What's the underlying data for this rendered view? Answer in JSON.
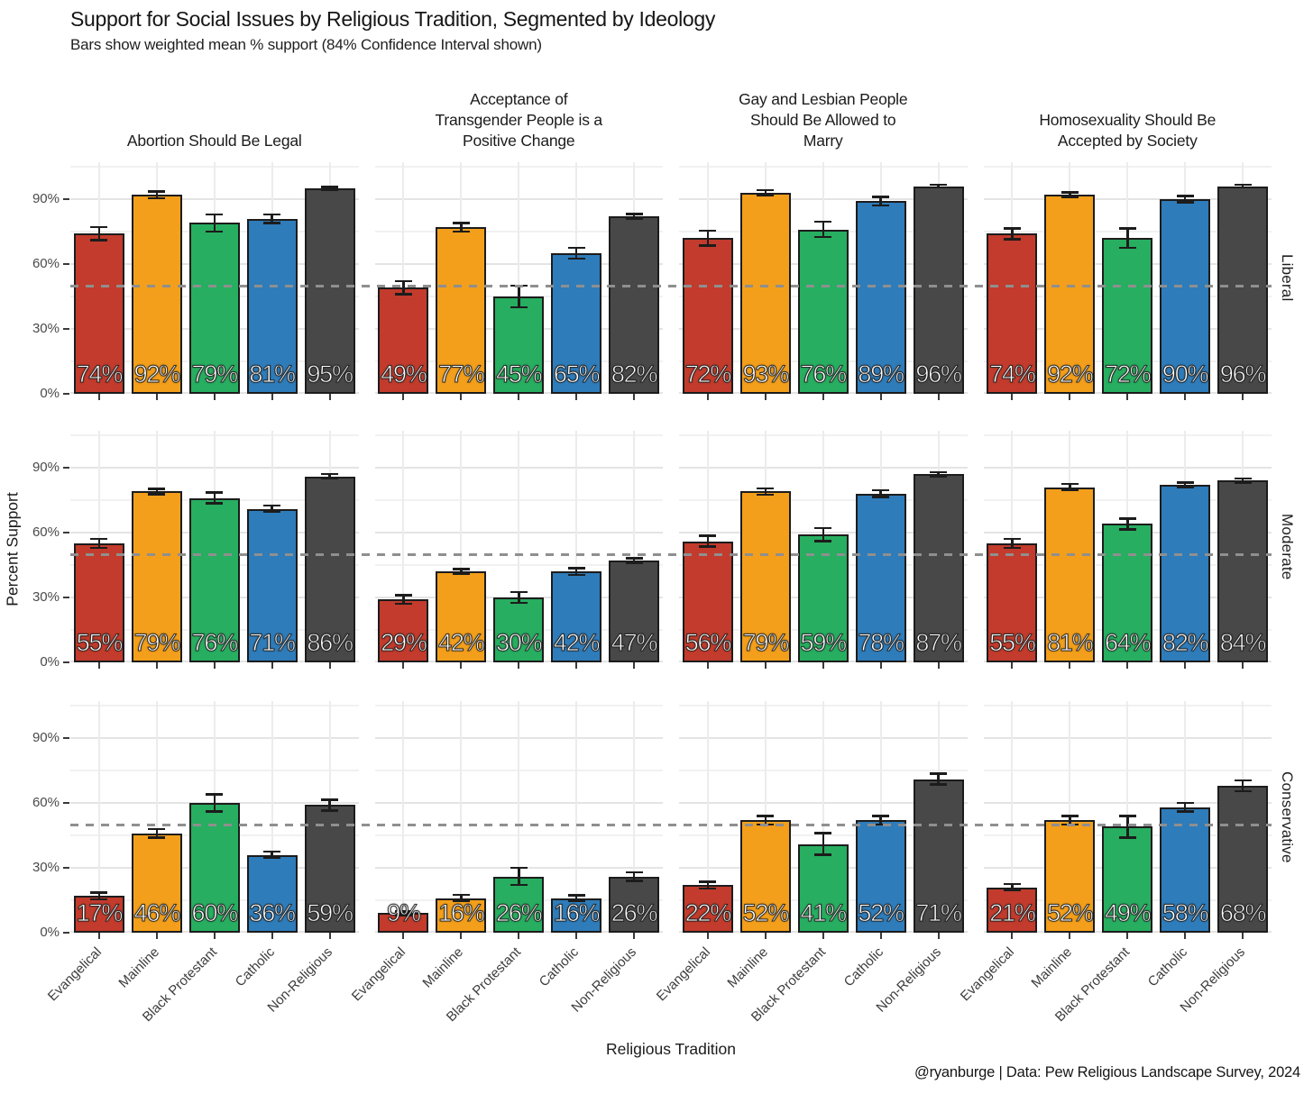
{
  "chart_data": {
    "type": "bar",
    "title": "Support for Social Issues by Religious Tradition, Segmented by Ideology",
    "subtitle": "Bars show weighted mean % support (84% Confidence Interval shown)",
    "xlabel": "Religious Tradition",
    "ylabel": "Percent Support",
    "caption": "@ryanburge | Data: Pew Religious Landscape Survey, 2024",
    "categories": [
      "Evangelical",
      "Mainline",
      "Black Protestant",
      "Catholic",
      "Non-Religious"
    ],
    "category_colors": [
      "#C23B2C",
      "#F39F1B",
      "#27AE60",
      "#2E7CBA",
      "#484848"
    ],
    "bar_border_color": "#1C1C1C",
    "legend": "none",
    "grid": "on",
    "reference_line": {
      "value": 50,
      "style": "dashed",
      "color": "#8F8F8F"
    },
    "y_axis": {
      "ticks": [
        0,
        30,
        60,
        90
      ],
      "tick_labels": [
        "0%",
        "30%",
        "60%",
        "90%"
      ],
      "minor_gridlines": [
        15,
        45,
        75,
        105
      ],
      "ylim": [
        0,
        107
      ]
    },
    "facet_columns": [
      "Abortion Should Be Legal",
      "Acceptance of\nTransgender People is a\nPositive Change",
      "Gay and Lesbian People\nShould Be Allowed to\nMarry",
      "Homosexuality Should Be\nAccepted by Society"
    ],
    "facet_rows": [
      "Liberal",
      "Moderate",
      "Conservative"
    ],
    "panels": [
      {
        "row": "Liberal",
        "column": "Abortion Should Be Legal",
        "values": [
          74,
          92,
          79,
          81,
          95
        ],
        "labels": [
          "74%",
          "92%",
          "79%",
          "81%",
          "95%"
        ],
        "ci": [
          3,
          1.5,
          4,
          2,
          0.7
        ]
      },
      {
        "row": "Liberal",
        "column": "Acceptance of Transgender People is a Positive Change",
        "values": [
          49,
          77,
          45,
          65,
          82
        ],
        "labels": [
          "49%",
          "77%",
          "45%",
          "65%",
          "82%"
        ],
        "ci": [
          3,
          2,
          5,
          2.5,
          1.2
        ]
      },
      {
        "row": "Liberal",
        "column": "Gay and Lesbian People Should Be Allowed to Marry",
        "values": [
          72,
          93,
          76,
          89,
          96
        ],
        "labels": [
          "72%",
          "93%",
          "76%",
          "89%",
          "96%"
        ],
        "ci": [
          3.5,
          1.2,
          3.5,
          2,
          0.6
        ]
      },
      {
        "row": "Liberal",
        "column": "Homosexuality Should Be Accepted by Society",
        "values": [
          74,
          92,
          72,
          90,
          96
        ],
        "labels": [
          "74%",
          "92%",
          "72%",
          "90%",
          "96%"
        ],
        "ci": [
          2.5,
          1.2,
          4.5,
          1.5,
          0.6
        ]
      },
      {
        "row": "Moderate",
        "column": "Abortion Should Be Legal",
        "values": [
          55,
          79,
          76,
          71,
          86
        ],
        "labels": [
          "55%",
          "79%",
          "76%",
          "71%",
          "86%"
        ],
        "ci": [
          2,
          1.2,
          2.5,
          1.5,
          1
        ]
      },
      {
        "row": "Moderate",
        "column": "Acceptance of Transgender People is a Positive Change",
        "values": [
          29,
          42,
          30,
          42,
          47
        ],
        "labels": [
          "29%",
          "42%",
          "30%",
          "42%",
          "47%"
        ],
        "ci": [
          2,
          1.2,
          2.5,
          1.5,
          1.2
        ]
      },
      {
        "row": "Moderate",
        "column": "Gay and Lesbian People Should Be Allowed to Marry",
        "values": [
          56,
          79,
          59,
          78,
          87
        ],
        "labels": [
          "56%",
          "79%",
          "59%",
          "78%",
          "87%"
        ],
        "ci": [
          2.5,
          1.5,
          3,
          1.5,
          1
        ]
      },
      {
        "row": "Moderate",
        "column": "Homosexuality Should Be Accepted by Society",
        "values": [
          55,
          81,
          64,
          82,
          84
        ],
        "labels": [
          "55%",
          "81%",
          "64%",
          "82%",
          "84%"
        ],
        "ci": [
          2,
          1.5,
          2.5,
          1.2,
          1
        ]
      },
      {
        "row": "Conservative",
        "column": "Abortion Should Be Legal",
        "values": [
          17,
          46,
          60,
          36,
          59
        ],
        "labels": [
          "17%",
          "46%",
          "60%",
          "36%",
          "59%"
        ],
        "ci": [
          1.5,
          2,
          4,
          1.5,
          2.5
        ]
      },
      {
        "row": "Conservative",
        "column": "Acceptance of Transgender People is a Positive Change",
        "values": [
          9,
          16,
          26,
          16,
          26
        ],
        "labels": [
          "9%",
          "16%",
          "26%",
          "16%",
          "26%"
        ],
        "ci": [
          0.8,
          1.5,
          4,
          1.2,
          2
        ]
      },
      {
        "row": "Conservative",
        "column": "Gay and Lesbian People Should Be Allowed to Marry",
        "values": [
          22,
          52,
          41,
          52,
          71
        ],
        "labels": [
          "22%",
          "52%",
          "41%",
          "52%",
          "71%"
        ],
        "ci": [
          1.5,
          2,
          5,
          2,
          2.5
        ]
      },
      {
        "row": "Conservative",
        "column": "Homosexuality Should Be Accepted by Society",
        "values": [
          21,
          52,
          49,
          58,
          68
        ],
        "labels": [
          "21%",
          "52%",
          "49%",
          "58%",
          "68%"
        ],
        "ci": [
          1.5,
          2,
          5,
          2,
          2.5
        ]
      }
    ]
  }
}
